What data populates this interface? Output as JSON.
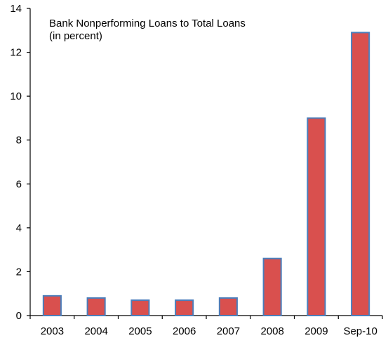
{
  "chart_data": {
    "type": "bar",
    "title": "Bank Nonperforming Loans to Total Loans",
    "subtitle": "(in percent)",
    "categories": [
      "2003",
      "2004",
      "2005",
      "2006",
      "2007",
      "2008",
      "2009",
      "Sep-10"
    ],
    "values": [
      0.9,
      0.8,
      0.7,
      0.7,
      0.8,
      2.6,
      9.0,
      12.9
    ],
    "ylim": [
      0,
      14
    ],
    "yticks": [
      0,
      2,
      4,
      6,
      8,
      10,
      12,
      14
    ],
    "xlabel": "",
    "ylabel": "",
    "grid": false,
    "legend": "none",
    "colors": {
      "bar_fill": "#d9504e",
      "bar_stroke": "#4a7ebb",
      "axis": "#000000"
    }
  }
}
